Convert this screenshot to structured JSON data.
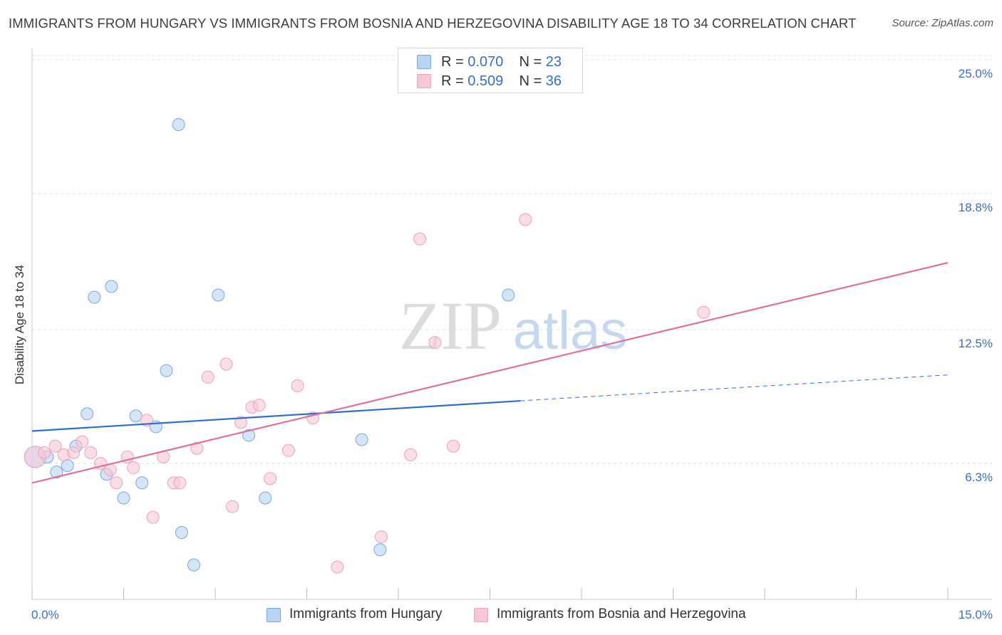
{
  "title": "IMMIGRANTS FROM HUNGARY VS IMMIGRANTS FROM BOSNIA AND HERZEGOVINA DISABILITY AGE 18 TO 34 CORRELATION CHART",
  "source": "Source: ZipAtlas.com",
  "watermark": {
    "zip": "ZIP",
    "atlas": "atlas"
  },
  "legend_top": [
    {
      "r_label": "R = ",
      "r_value": "0.070",
      "n_label": "N = ",
      "n_value": "23"
    },
    {
      "r_label": "R = ",
      "r_value": "0.509",
      "n_label": "N = ",
      "n_value": "36"
    }
  ],
  "chart_data": {
    "type": "scatter",
    "title": "IMMIGRANTS FROM HUNGARY VS IMMIGRANTS FROM BOSNIA AND HERZEGOVINA DISABILITY AGE 18 TO 34 CORRELATION CHART",
    "xlabel": "",
    "ylabel": "Disability Age 18 to 34",
    "xlim": [
      0,
      15
    ],
    "ylim": [
      0,
      25
    ],
    "x_tick_labels": [
      "0.0%",
      "15.0%"
    ],
    "y_ticks": [
      6.3,
      12.5,
      18.8,
      25.0
    ],
    "y_tick_labels": [
      "6.3%",
      "12.5%",
      "18.8%",
      "25.0%"
    ],
    "grid": true,
    "legend_position": "bottom",
    "series": [
      {
        "name": "Immigrants from Hungary",
        "color": "#7aa7e0",
        "fill": "#b9d3f3",
        "line_color": "#2e6fce",
        "R": 0.07,
        "N": 23,
        "trend": {
          "x0": 0.0,
          "y0": 7.8,
          "x1": 8.0,
          "y1": 9.2,
          "dash_x1": 15.0,
          "dash_y1": 10.4
        },
        "points": [
          {
            "x": 0.05,
            "y": 6.6
          },
          {
            "x": 0.25,
            "y": 6.6
          },
          {
            "x": 0.4,
            "y": 5.9
          },
          {
            "x": 0.58,
            "y": 6.2
          },
          {
            "x": 0.72,
            "y": 7.1
          },
          {
            "x": 0.9,
            "y": 8.6
          },
          {
            "x": 1.02,
            "y": 14.0
          },
          {
            "x": 1.3,
            "y": 14.5
          },
          {
            "x": 1.22,
            "y": 5.8
          },
          {
            "x": 1.5,
            "y": 4.7
          },
          {
            "x": 1.7,
            "y": 8.5
          },
          {
            "x": 1.8,
            "y": 5.4
          },
          {
            "x": 2.03,
            "y": 8.0
          },
          {
            "x": 2.2,
            "y": 10.6
          },
          {
            "x": 2.4,
            "y": 22.0
          },
          {
            "x": 2.45,
            "y": 3.1
          },
          {
            "x": 2.65,
            "y": 1.6
          },
          {
            "x": 3.05,
            "y": 14.1
          },
          {
            "x": 3.55,
            "y": 7.6
          },
          {
            "x": 3.82,
            "y": 4.7
          },
          {
            "x": 5.4,
            "y": 7.4
          },
          {
            "x": 5.7,
            "y": 2.3
          },
          {
            "x": 7.8,
            "y": 14.1
          }
        ]
      },
      {
        "name": "Immigrants from Bosnia and Herzegovina",
        "color": "#eda3ba",
        "fill": "#f7c7d6",
        "line_color": "#e0709a",
        "R": 0.509,
        "N": 36,
        "trend": {
          "x0": 0.0,
          "y0": 5.4,
          "x1": 15.0,
          "y1": 15.6
        },
        "points": [
          {
            "x": 0.05,
            "y": 6.6
          },
          {
            "x": 0.2,
            "y": 6.8
          },
          {
            "x": 0.38,
            "y": 7.1
          },
          {
            "x": 0.52,
            "y": 6.7
          },
          {
            "x": 0.68,
            "y": 6.8
          },
          {
            "x": 0.82,
            "y": 7.3
          },
          {
            "x": 0.96,
            "y": 6.8
          },
          {
            "x": 1.12,
            "y": 6.3
          },
          {
            "x": 1.28,
            "y": 6.0
          },
          {
            "x": 1.38,
            "y": 5.4
          },
          {
            "x": 1.56,
            "y": 6.6
          },
          {
            "x": 1.66,
            "y": 6.1
          },
          {
            "x": 1.88,
            "y": 8.3
          },
          {
            "x": 1.98,
            "y": 3.8
          },
          {
            "x": 2.15,
            "y": 6.6
          },
          {
            "x": 2.32,
            "y": 5.4
          },
          {
            "x": 2.42,
            "y": 5.4
          },
          {
            "x": 2.7,
            "y": 7.0
          },
          {
            "x": 2.88,
            "y": 10.3
          },
          {
            "x": 3.18,
            "y": 10.9
          },
          {
            "x": 3.28,
            "y": 4.3
          },
          {
            "x": 3.42,
            "y": 8.2
          },
          {
            "x": 3.6,
            "y": 8.9
          },
          {
            "x": 3.72,
            "y": 9.0
          },
          {
            "x": 3.9,
            "y": 5.6
          },
          {
            "x": 4.2,
            "y": 6.9
          },
          {
            "x": 4.35,
            "y": 9.9
          },
          {
            "x": 4.6,
            "y": 8.4
          },
          {
            "x": 5.0,
            "y": 1.5
          },
          {
            "x": 5.72,
            "y": 2.9
          },
          {
            "x": 6.2,
            "y": 6.7
          },
          {
            "x": 6.35,
            "y": 16.7
          },
          {
            "x": 6.6,
            "y": 11.9
          },
          {
            "x": 6.9,
            "y": 7.1
          },
          {
            "x": 8.08,
            "y": 17.6
          },
          {
            "x": 11.0,
            "y": 13.3
          }
        ]
      }
    ]
  }
}
